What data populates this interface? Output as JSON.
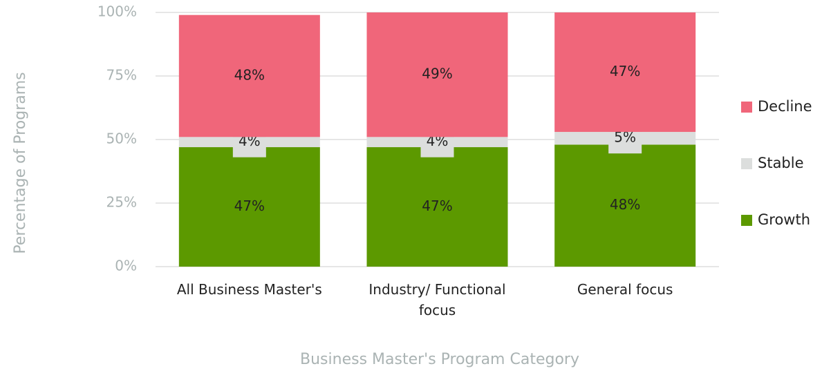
{
  "chart_data": {
    "type": "bar",
    "stacked": true,
    "x_label": "Business Master's Program Category",
    "y_label": "Percentage of Programs",
    "categories": [
      "All Business Master's",
      "Industry/ Functional focus",
      "General focus"
    ],
    "series": [
      {
        "name": "Growth",
        "color": "#5c9900",
        "values": [
          47,
          47,
          48
        ],
        "value_labels": [
          "47%",
          "47%",
          "48%"
        ]
      },
      {
        "name": "Stable",
        "color": "#dcdedd",
        "values": [
          4,
          4,
          5
        ],
        "value_labels": [
          "4%",
          "4%",
          "5%"
        ]
      },
      {
        "name": "Decline",
        "color": "#f0667a",
        "values": [
          48,
          49,
          47
        ],
        "value_labels": [
          "48%",
          "49%",
          "47%"
        ]
      }
    ],
    "ylim": [
      0,
      100
    ],
    "yticks": [
      {
        "value": 0,
        "label": "0%"
      },
      {
        "value": 25,
        "label": "25%"
      },
      {
        "value": 50,
        "label": "50%"
      },
      {
        "value": 75,
        "label": "75%"
      },
      {
        "value": 100,
        "label": "100%"
      }
    ],
    "grid": true,
    "legend": "right"
  }
}
